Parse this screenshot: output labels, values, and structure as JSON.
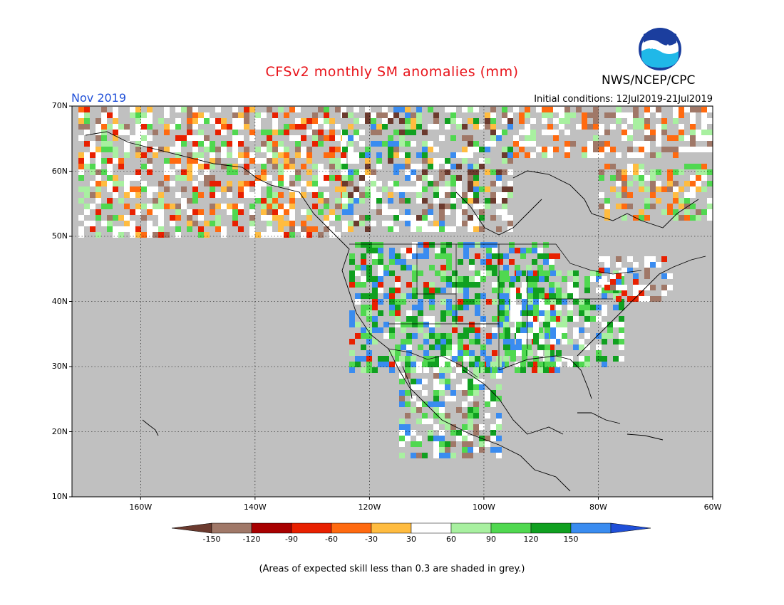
{
  "title": "CFSv2 monthly SM anomalies (mm)",
  "organization": "NWS/NCEP/CPC",
  "logo_text": "NOAA",
  "valid_month": "Nov 2019",
  "initial_conditions": "Initial conditions: 12Jul2019-21Jul2019",
  "note": "(Areas of expected skill less than 0.3 are shaded in grey.)",
  "map": {
    "lon_range": [
      -172,
      -60
    ],
    "lat_range": [
      10,
      70
    ],
    "lat_ticks": [
      "70N",
      "60N",
      "50N",
      "40N",
      "30N",
      "20N",
      "10N"
    ],
    "lon_ticks": [
      "160W",
      "140W",
      "120W",
      "100W",
      "80W",
      "60W"
    ],
    "background_color": "#c0c0c0",
    "grid": true
  },
  "colorbar": {
    "labels": [
      "-150",
      "-120",
      "-90",
      "-60",
      "-30",
      "30",
      "60",
      "90",
      "120",
      "150"
    ],
    "colors": [
      "#6b3a2e",
      "#a07868",
      "#a80000",
      "#e82000",
      "#ff6a10",
      "#ffbc40",
      "#ffffff",
      "#a8f0a0",
      "#50d850",
      "#10a020",
      "#3a8cf0",
      "#1f4fd8"
    ]
  }
}
